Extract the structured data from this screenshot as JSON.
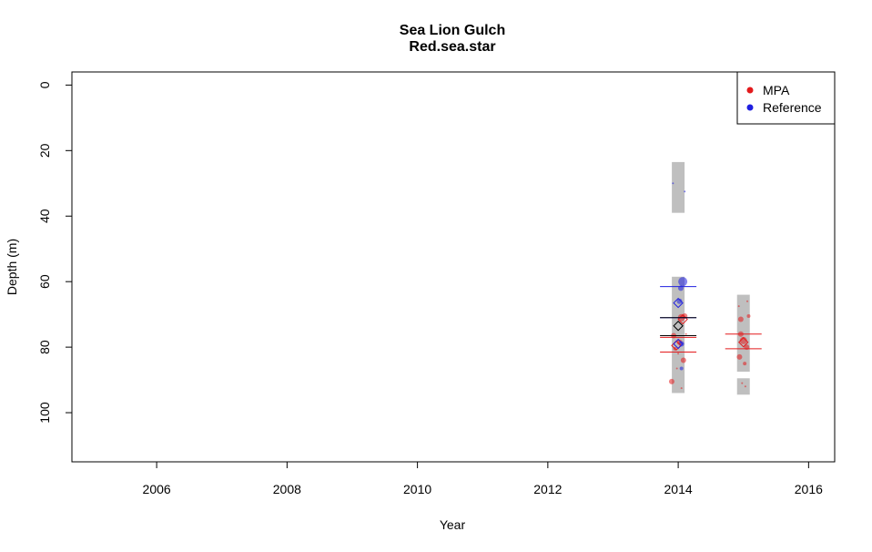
{
  "chart_data": {
    "type": "scatter",
    "title": "Sea Lion Gulch",
    "subtitle": "Red.sea.star",
    "xlabel": "Year",
    "ylabel": "Depth (m)",
    "xlim": [
      2004.7,
      2016.4
    ],
    "ylim": [
      115,
      -4
    ],
    "y_reversed": true,
    "xticks": [
      2006,
      2008,
      2010,
      2012,
      2014,
      2016
    ],
    "yticks": [
      0,
      20,
      40,
      60,
      80,
      100
    ],
    "grid": false,
    "legend_position": "top-right",
    "colors": {
      "MPA": "#e31a1c",
      "Reference": "#1f1fe0",
      "depth_band": "#bfbfbf",
      "combined": "#000000"
    },
    "series": [
      {
        "name": "MPA",
        "color": "#e31a1c",
        "points": [
          {
            "x": 2013.93,
            "y": 76.5,
            "r": 3
          },
          {
            "x": 2014.05,
            "y": 71.0,
            "r": 4
          },
          {
            "x": 2014.1,
            "y": 70.5,
            "r": 3
          },
          {
            "x": 2014.02,
            "y": 78.5,
            "r": 3
          },
          {
            "x": 2013.95,
            "y": 80.5,
            "r": 2
          },
          {
            "x": 2014.08,
            "y": 84.0,
            "r": 3
          },
          {
            "x": 2013.98,
            "y": 86.5,
            "r": 1
          },
          {
            "x": 2013.9,
            "y": 90.5,
            "r": 3
          },
          {
            "x": 2014.05,
            "y": 92.5,
            "r": 1
          },
          {
            "x": 2014.12,
            "y": 76.0,
            "r": 1
          },
          {
            "x": 2014.0,
            "y": 82.0,
            "r": 1
          },
          {
            "x": 2014.96,
            "y": 71.5,
            "r": 3
          },
          {
            "x": 2015.08,
            "y": 70.5,
            "r": 2
          },
          {
            "x": 2015.06,
            "y": 66.0,
            "r": 1
          },
          {
            "x": 2014.93,
            "y": 67.5,
            "r": 1
          },
          {
            "x": 2014.96,
            "y": 76.0,
            "r": 3
          },
          {
            "x": 2015.0,
            "y": 78.0,
            "r": 4
          },
          {
            "x": 2015.05,
            "y": 80.0,
            "r": 3
          },
          {
            "x": 2014.94,
            "y": 83.0,
            "r": 3
          },
          {
            "x": 2015.02,
            "y": 85.0,
            "r": 2
          },
          {
            "x": 2014.98,
            "y": 91.0,
            "r": 1
          },
          {
            "x": 2015.03,
            "y": 92.0,
            "r": 1
          }
        ],
        "mean_markers": [
          {
            "x": 2013.97,
            "y": 79.5
          },
          {
            "x": 2014.07,
            "y": 71.5
          },
          {
            "x": 2015.0,
            "y": 78.5
          }
        ],
        "mean_lines": [
          {
            "x": 2014.0,
            "y": 77.0
          },
          {
            "x": 2014.0,
            "y": 81.5
          },
          {
            "x": 2015.0,
            "y": 76.0
          },
          {
            "x": 2015.0,
            "y": 80.5
          }
        ]
      },
      {
        "name": "Reference",
        "color": "#1f1fe0",
        "points": [
          {
            "x": 2014.07,
            "y": 60.0,
            "r": 5
          },
          {
            "x": 2014.04,
            "y": 62.0,
            "r": 3
          },
          {
            "x": 2014.02,
            "y": 66.0,
            "r": 3
          },
          {
            "x": 2014.05,
            "y": 79.0,
            "r": 3
          },
          {
            "x": 2014.05,
            "y": 86.5,
            "r": 2
          },
          {
            "x": 2013.92,
            "y": 30.0,
            "r": 1
          },
          {
            "x": 2014.1,
            "y": 32.5,
            "r": 1
          }
        ],
        "mean_markers": [
          {
            "x": 2014.0,
            "y": 66.5
          },
          {
            "x": 2014.0,
            "y": 79.0
          }
        ],
        "mean_lines": [
          {
            "x": 2014.0,
            "y": 61.5
          },
          {
            "x": 2014.0,
            "y": 71.0
          }
        ]
      }
    ],
    "combined_means": {
      "markers": [
        {
          "x": 2014.0,
          "y": 73.5
        }
      ],
      "lines": [
        {
          "x": 2014.0,
          "y": 71.0
        },
        {
          "x": 2014.0,
          "y": 76.5
        }
      ]
    },
    "depth_bands": [
      {
        "x": 2014.0,
        "y_top": 23.5,
        "y_bottom": 39.0
      },
      {
        "x": 2014.0,
        "y_top": 58.5,
        "y_bottom": 94.0
      },
      {
        "x": 2015.0,
        "y_top": 64.0,
        "y_bottom": 87.5
      },
      {
        "x": 2015.0,
        "y_top": 89.5,
        "y_bottom": 94.5
      }
    ]
  }
}
